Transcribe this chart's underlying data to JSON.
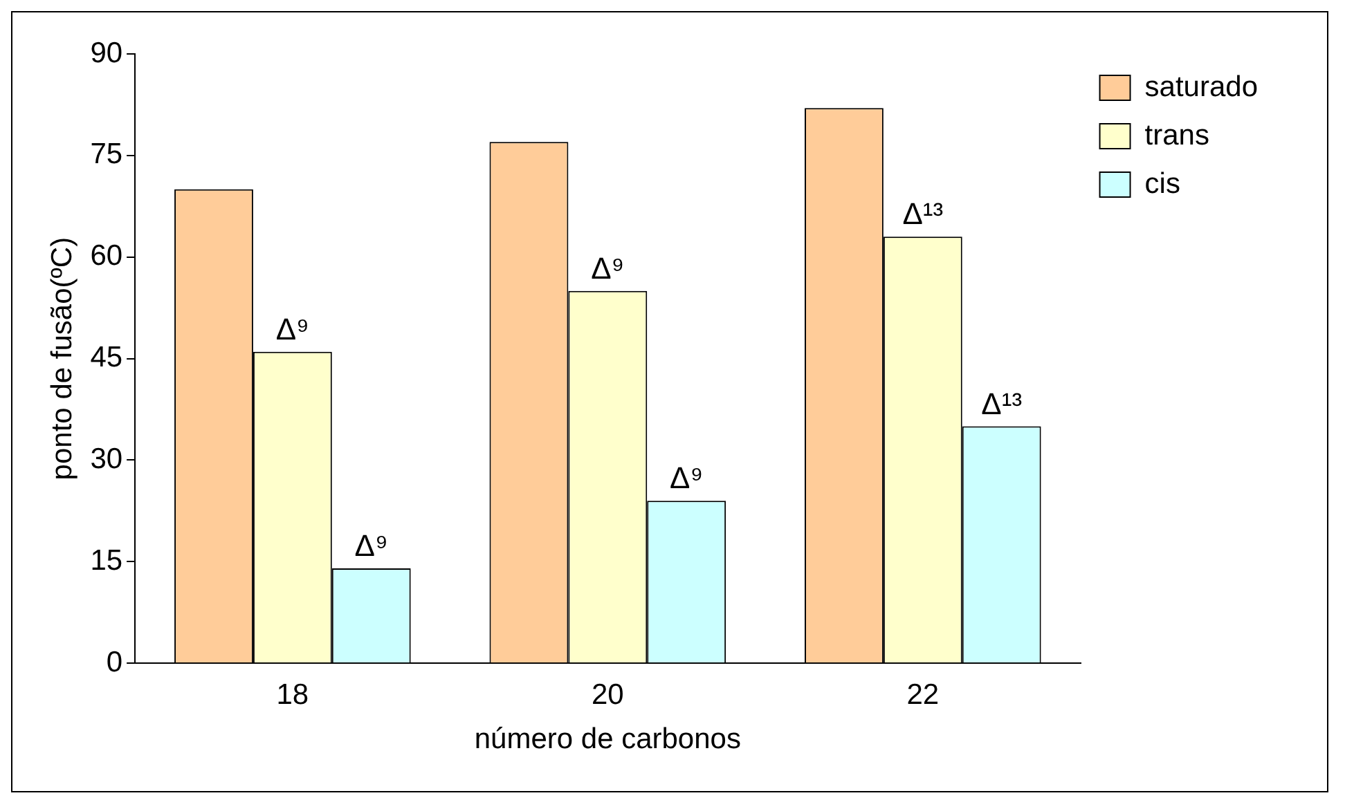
{
  "chart_data": {
    "type": "bar",
    "xlabel": "número de carbonos",
    "ylabel": "ponto de fusão(ºC)",
    "categories": [
      "18",
      "20",
      "22"
    ],
    "series": [
      {
        "name": "saturado",
        "color": "#ffcc99",
        "values": [
          70,
          77,
          82
        ]
      },
      {
        "name": "trans",
        "color": "#ffffcc",
        "values": [
          46,
          55,
          63
        ],
        "value_labels": [
          "Δ⁹",
          "Δ⁹",
          "Δ¹³"
        ]
      },
      {
        "name": "cis",
        "color": "#ccffff",
        "values": [
          14,
          24,
          35
        ],
        "value_labels": [
          "Δ⁹",
          "Δ⁹",
          "Δ¹³"
        ]
      }
    ],
    "ylim": [
      0,
      90
    ],
    "yticks": [
      0,
      15,
      30,
      45,
      60,
      75,
      90
    ],
    "grid": false,
    "legend": "right"
  }
}
